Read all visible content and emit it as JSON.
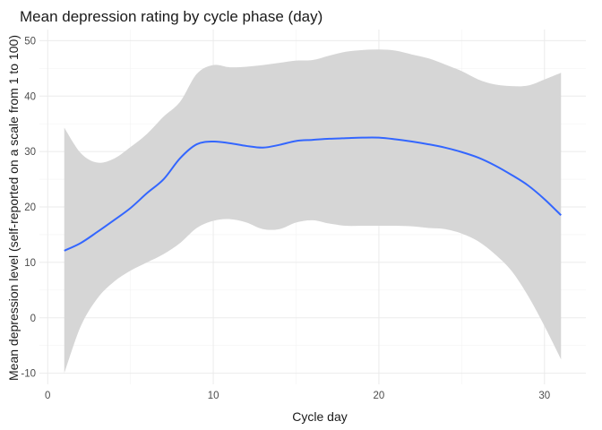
{
  "chart_data": {
    "type": "line",
    "title": "Mean depression rating by cycle phase (day)",
    "xlabel": "Cycle day",
    "ylabel": "Mean depression level (self-reported on a scale from 1 to 100)",
    "xlim": [
      -0.5,
      32.5
    ],
    "ylim": [
      -12,
      52
    ],
    "x_ticks": [
      0,
      10,
      20,
      30
    ],
    "y_ticks": [
      -10,
      0,
      10,
      20,
      30,
      40,
      50
    ],
    "grid": true,
    "colors": {
      "line": "#3366FF",
      "ribbon": "#d6d6d6"
    },
    "series": [
      {
        "x": [
          1,
          2,
          3,
          4,
          5,
          6,
          7,
          8,
          9,
          10,
          11,
          12,
          13,
          14,
          15,
          16,
          17,
          18,
          19,
          20,
          21,
          22,
          23,
          24,
          25,
          26,
          27,
          28,
          29,
          30,
          31
        ],
        "y": [
          12.1,
          13.5,
          15.5,
          17.6,
          19.8,
          22.5,
          25.0,
          28.8,
          31.3,
          31.8,
          31.5,
          31.0,
          30.7,
          31.2,
          31.9,
          32.1,
          32.3,
          32.4,
          32.5,
          32.5,
          32.2,
          31.8,
          31.3,
          30.7,
          29.9,
          28.9,
          27.5,
          25.8,
          23.9,
          21.4,
          18.5
        ],
        "lower": [
          -10.0,
          -1.5,
          3.5,
          6.5,
          8.5,
          10.0,
          11.5,
          13.5,
          16.2,
          17.5,
          17.8,
          17.2,
          16.0,
          16.0,
          17.2,
          17.6,
          17.0,
          16.6,
          16.6,
          16.6,
          16.6,
          16.5,
          16.2,
          16.0,
          15.2,
          13.8,
          11.5,
          8.5,
          4.0,
          -1.5,
          -7.5
        ],
        "upper": [
          34.3,
          29.7,
          28.0,
          28.7,
          30.8,
          33.2,
          36.3,
          39.0,
          44.0,
          45.6,
          45.2,
          45.3,
          45.6,
          46.0,
          46.4,
          46.5,
          47.3,
          48.0,
          48.3,
          48.4,
          48.2,
          47.5,
          46.8,
          45.7,
          44.5,
          43.0,
          42.1,
          41.8,
          41.9,
          43.0,
          44.2
        ]
      }
    ]
  }
}
